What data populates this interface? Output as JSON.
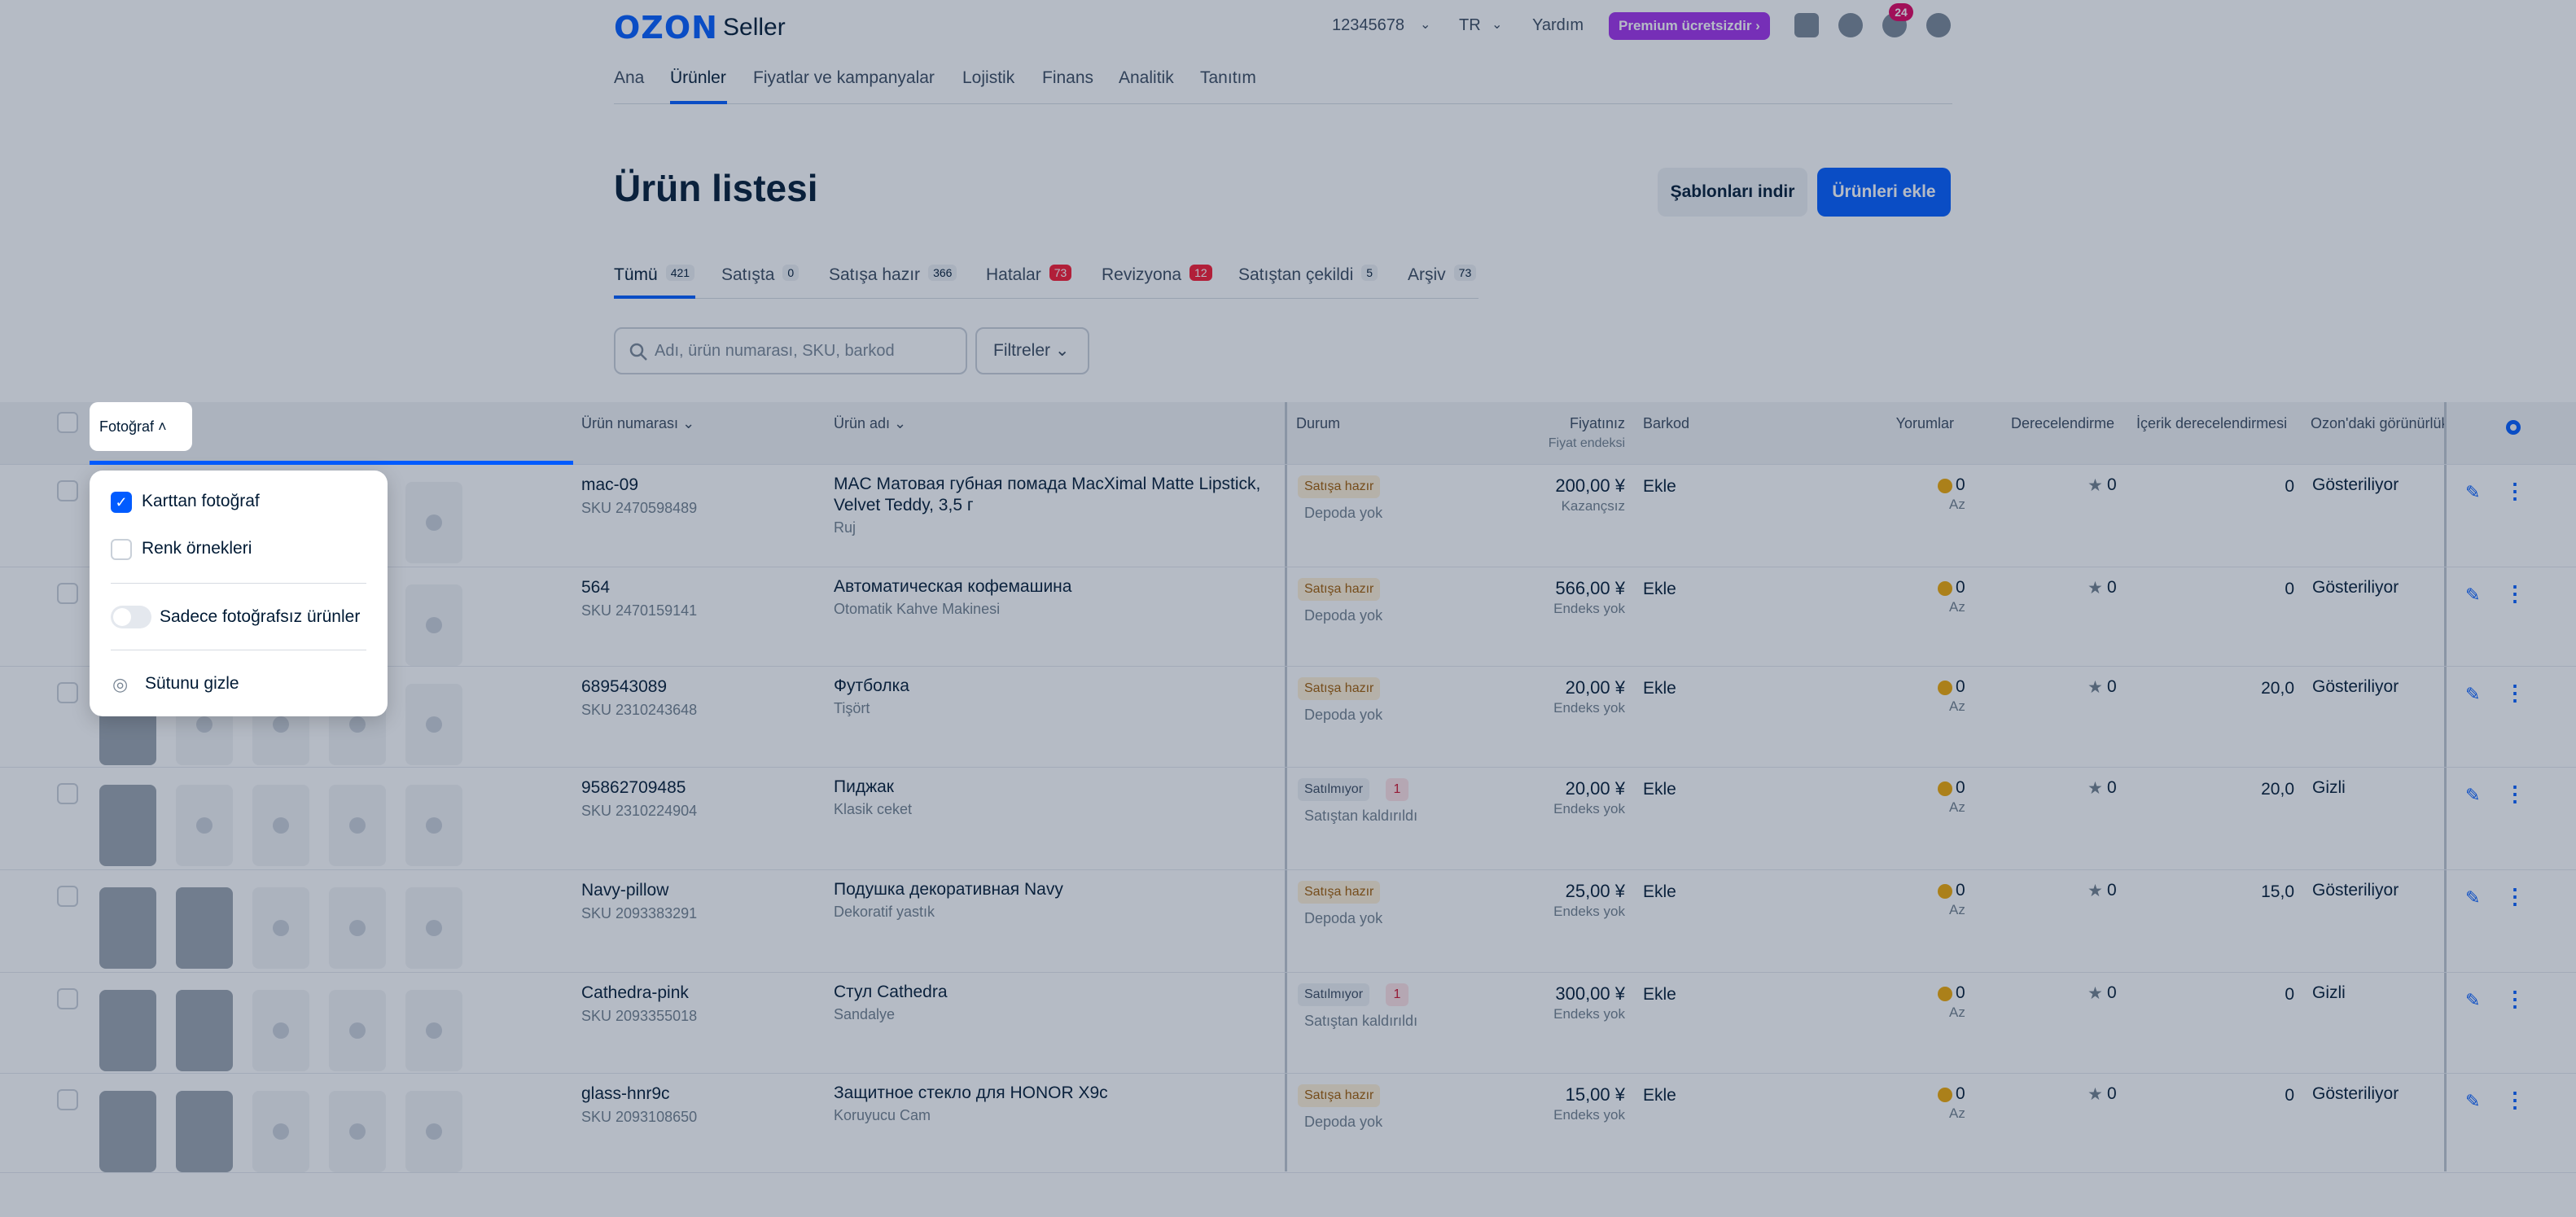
{
  "header": {
    "logo": "OZON",
    "logo_suffix": "Seller",
    "account": "12345678",
    "lang": "TR",
    "help": "Yardım",
    "premium": "Premium ücretsizdir ›",
    "notif_count": "24"
  },
  "nav": [
    "Ana",
    "Ürünler",
    "Fiyatlar ve kampanyalar",
    "Lojistik",
    "Finans",
    "Analitik",
    "Tanıtım"
  ],
  "page": {
    "title": "Ürün listesi",
    "download_templates": "Şablonları indir",
    "add_products": "Ürünleri ekle"
  },
  "tabs": [
    {
      "label": "Tümü",
      "count": "421"
    },
    {
      "label": "Satışta",
      "count": "0"
    },
    {
      "label": "Satışa hazır",
      "count": "366"
    },
    {
      "label": "Hatalar",
      "count": "73"
    },
    {
      "label": "Revizyona",
      "count": "12"
    },
    {
      "label": "Satıştan çekildi",
      "count": "5"
    },
    {
      "label": "Arşiv",
      "count": "73"
    }
  ],
  "search": {
    "placeholder": "Adı, ürün numarası, SKU, barkod"
  },
  "filters": "Filtreler",
  "columns": {
    "photo": "Fotoğraf",
    "product_number": "Ürün numarası",
    "product_name": "Ürün adı",
    "status": "Durum",
    "price": "Fiyatınız",
    "price_sub": "Fiyat endeksi",
    "barcode": "Barkod",
    "reviews": "Yorumlar",
    "rating": "Derecelendirme",
    "content_rating": "İçerik derecelendirmesi",
    "ozon_visibility": "Ozon'daki görünürlük"
  },
  "rows": [
    {
      "num": "mac-09",
      "sku": "SKU 2470598489",
      "name": "MAC Матовая губная помада MacXimal Matte Lipstick, Velvet Teddy, 3,5 г",
      "sub": "Ruj",
      "status": "Satışa hazır",
      "status2": "Depoda yok",
      "price": "200,00 ¥",
      "price_sub": "Kazançsız",
      "barcode": "Ekle",
      "rev": "0",
      "rev_sub": "Az",
      "rating": "0",
      "content": "0",
      "vis": "Gösteriliyor"
    },
    {
      "num": "564",
      "sku": "SKU 2470159141",
      "name": "Автоматическая кофемашина",
      "sub": "Otomatik Kahve Makinesi",
      "status": "Satışa hazır",
      "status2": "Depoda yok",
      "price": "566,00 ¥",
      "price_sub": "Endeks yok",
      "barcode": "Ekle",
      "rev": "0",
      "rev_sub": "Az",
      "rating": "0",
      "content": "0",
      "vis": "Gösteriliyor"
    },
    {
      "num": "689543089",
      "sku": "SKU 2310243648",
      "name": "Футболка",
      "sub": "Tişört",
      "status": "Satışa hazır",
      "status2": "Depoda yok",
      "price": "20,00 ¥",
      "price_sub": "Endeks yok",
      "barcode": "Ekle",
      "rev": "0",
      "rev_sub": "Az",
      "rating": "0",
      "content": "20,0",
      "vis": "Gösteriliyor"
    },
    {
      "num": "95862709485",
      "sku": "SKU 2310224904",
      "name": "Пиджак",
      "sub": "Klasik ceket",
      "status": "Satılmıyor",
      "badge": "1",
      "status2": "Satıştan kaldırıldı",
      "price": "20,00 ¥",
      "price_sub": "Endeks yok",
      "barcode": "Ekle",
      "rev": "0",
      "rev_sub": "Az",
      "rating": "0",
      "content": "20,0",
      "vis": "Gizli"
    },
    {
      "num": "Navy-pillow",
      "sku": "SKU 2093383291",
      "name": "Подушка декоративная Navy",
      "sub": "Dekoratif yastık",
      "status": "Satışa hazır",
      "status2": "Depoda yok",
      "price": "25,00 ¥",
      "price_sub": "Endeks yok",
      "barcode": "Ekle",
      "rev": "0",
      "rev_sub": "Az",
      "rating": "0",
      "content": "15,0",
      "vis": "Gösteriliyor"
    },
    {
      "num": "Cathedra-pink",
      "sku": "SKU 2093355018",
      "name": "Стул Cathedra",
      "sub": "Sandalye",
      "status": "Satılmıyor",
      "badge": "1",
      "status2": "Satıştan kaldırıldı",
      "price": "300,00 ¥",
      "price_sub": "Endeks yok",
      "barcode": "Ekle",
      "rev": "0",
      "rev_sub": "Az",
      "rating": "0",
      "content": "0",
      "vis": "Gizli"
    },
    {
      "num": "glass-hnr9c",
      "sku": "SKU 2093108650",
      "name": "Защитное стекло для HONOR X9c",
      "sub": "Koruyucu Cam",
      "status": "Satışa hazır",
      "status2": "Depoda yok",
      "price": "15,00 ¥",
      "price_sub": "Endeks yok",
      "barcode": "Ekle",
      "rev": "0",
      "rev_sub": "Az",
      "rating": "0",
      "content": "0",
      "vis": "Gösteriliyor"
    }
  ],
  "popup": {
    "opt1": "Karttan fotoğraf",
    "opt2": "Renk örnekleri",
    "toggle": "Sadece fotoğrafsız ürünler",
    "hide": "Sütunu gizle"
  },
  "colors": {
    "accent": "#005bff",
    "premium": "#a12fea",
    "badge": "#e1005f"
  }
}
